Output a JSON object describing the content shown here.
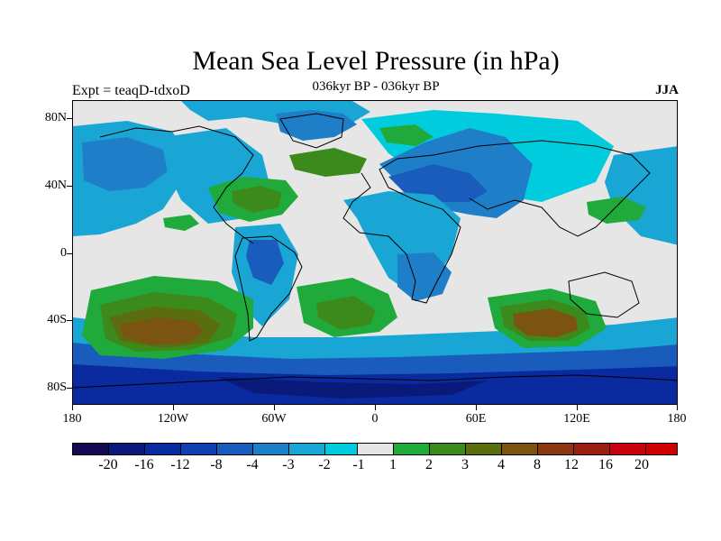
{
  "title": "Mean Sea Level Pressure (in hPa)",
  "expt_label": "Expt = teaqD-tdxoD",
  "subtitle": "036kyr BP - 036kyr BP",
  "season": "JJA",
  "map": {
    "y_axis_labels": [
      "80N",
      "40N",
      "0",
      "40S",
      "80S"
    ],
    "x_axis_labels": [
      "180",
      "120W",
      "60W",
      "0",
      "60E",
      "120E",
      "180"
    ],
    "colors": {
      "neutral": "#e6e6e6",
      "coast": "#000000",
      "m20": "#130a52",
      "m16": "#0a1a7a",
      "m12": "#0a2aa0",
      "m8": "#1040b0",
      "m4": "#1a5cbc",
      "m3": "#1e7fc8",
      "m2": "#1aa6d4",
      "m1": "#00ccdd",
      "p1": "#e6e6e6",
      "p2": "#20aa3c",
      "p3": "#3d8a1c",
      "p4": "#5a6e10",
      "p8": "#7a5410",
      "p12": "#8a3812",
      "p16": "#9a1e14",
      "p20": "#c80010"
    }
  },
  "colorbar": {
    "labels": [
      "-20",
      "-16",
      "-12",
      "-8",
      "-4",
      "-3",
      "-2",
      "-1",
      "1",
      "2",
      "3",
      "4",
      "8",
      "12",
      "16",
      "20"
    ],
    "colors": [
      "#130a52",
      "#0a1a7a",
      "#0a2aa0",
      "#1040b0",
      "#1a5cbc",
      "#1e7fc8",
      "#1aa6d4",
      "#00ccdd",
      "#e6e6e6",
      "#20aa3c",
      "#3d8a1c",
      "#5a6e10",
      "#7a5410",
      "#8a3812",
      "#9a1e14",
      "#c80010",
      "#d00000"
    ]
  }
}
